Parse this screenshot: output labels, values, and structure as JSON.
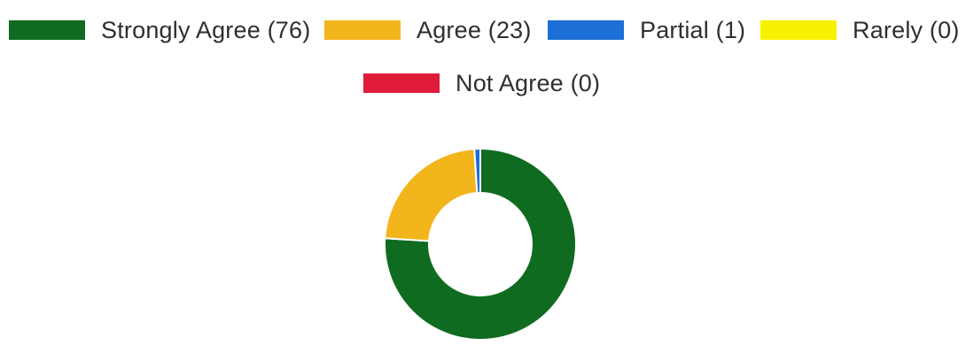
{
  "chart_data": {
    "type": "pie",
    "variant": "donut",
    "legend_position": "top",
    "categories": [
      "Strongly Agree",
      "Agree",
      "Partial",
      "Rarely",
      "Not Agree"
    ],
    "values": [
      76,
      23,
      1,
      0,
      0
    ],
    "colors": [
      "#0f6b1f",
      "#f2b51c",
      "#1c6fd6",
      "#f7f300",
      "#e01b3a"
    ],
    "legend_labels": [
      "Strongly Agree (76)",
      "Agree (23)",
      "Partial (1)",
      "Rarely (0)",
      "Not Agree (0)"
    ]
  }
}
